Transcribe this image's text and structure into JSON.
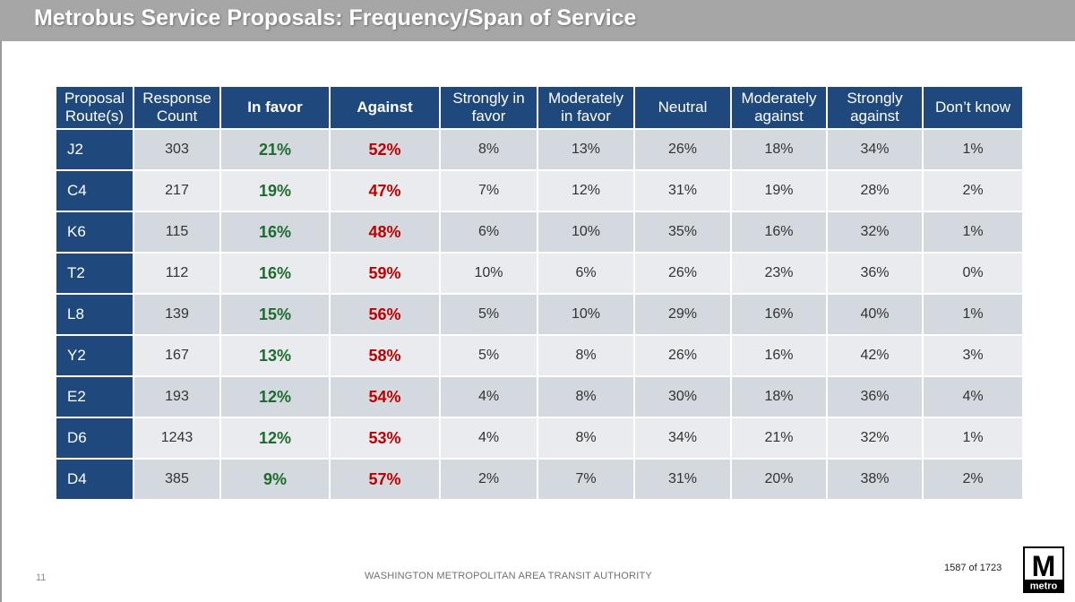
{
  "title": "Metrobus Service Proposals: Frequency/Span of Service",
  "table": {
    "headers": {
      "route": [
        "Proposal",
        "Route(s)"
      ],
      "count": [
        "Response",
        "Count"
      ],
      "in_favor": "In favor",
      "against": "Against",
      "strongly_favor": [
        "Strongly in",
        "favor"
      ],
      "moderately_favor": [
        "Moderately",
        "in favor"
      ],
      "neutral": "Neutral",
      "moderately_against": [
        "Moderately",
        "against"
      ],
      "strongly_against": [
        "Strongly",
        "against"
      ],
      "dont_know": "Don’t know"
    },
    "rows": [
      {
        "route": "J2",
        "count": "303",
        "in_favor": "21%",
        "against": "52%",
        "strongly_favor": "8%",
        "moderately_favor": "13%",
        "neutral": "26%",
        "moderately_against": "18%",
        "strongly_against": "34%",
        "dont_know": "1%"
      },
      {
        "route": "C4",
        "count": "217",
        "in_favor": "19%",
        "against": "47%",
        "strongly_favor": "7%",
        "moderately_favor": "12%",
        "neutral": "31%",
        "moderately_against": "19%",
        "strongly_against": "28%",
        "dont_know": "2%"
      },
      {
        "route": "K6",
        "count": "115",
        "in_favor": "16%",
        "against": "48%",
        "strongly_favor": "6%",
        "moderately_favor": "10%",
        "neutral": "35%",
        "moderately_against": "16%",
        "strongly_against": "32%",
        "dont_know": "1%"
      },
      {
        "route": "T2",
        "count": "112",
        "in_favor": "16%",
        "against": "59%",
        "strongly_favor": "10%",
        "moderately_favor": "6%",
        "neutral": "26%",
        "moderately_against": "23%",
        "strongly_against": "36%",
        "dont_know": "0%"
      },
      {
        "route": "L8",
        "count": "139",
        "in_favor": "15%",
        "against": "56%",
        "strongly_favor": "5%",
        "moderately_favor": "10%",
        "neutral": "29%",
        "moderately_against": "16%",
        "strongly_against": "40%",
        "dont_know": "1%"
      },
      {
        "route": "Y2",
        "count": "167",
        "in_favor": "13%",
        "against": "58%",
        "strongly_favor": "5%",
        "moderately_favor": "8%",
        "neutral": "26%",
        "moderately_against": "16%",
        "strongly_against": "42%",
        "dont_know": "3%"
      },
      {
        "route": "E2",
        "count": "193",
        "in_favor": "12%",
        "against": "54%",
        "strongly_favor": "4%",
        "moderately_favor": "8%",
        "neutral": "30%",
        "moderately_against": "18%",
        "strongly_against": "36%",
        "dont_know": "4%"
      },
      {
        "route": "D6",
        "count": "1243",
        "in_favor": "12%",
        "against": "53%",
        "strongly_favor": "4%",
        "moderately_favor": "8%",
        "neutral": "34%",
        "moderately_against": "21%",
        "strongly_against": "32%",
        "dont_know": "1%"
      },
      {
        "route": "D4",
        "count": "385",
        "in_favor": "9%",
        "against": "57%",
        "strongly_favor": "2%",
        "moderately_favor": "7%",
        "neutral": "31%",
        "moderately_against": "20%",
        "strongly_against": "38%",
        "dont_know": "2%"
      }
    ]
  },
  "footer": {
    "page_number": "11",
    "organization": "WASHINGTON METROPOLITAN AREA TRANSIT AUTHORITY",
    "page_count": "1587 of 1723",
    "logo_letter": "M",
    "logo_word": "metro"
  },
  "colors": {
    "header_bg": "#1f497d",
    "favor": "#1e6b2e",
    "against": "#c00000",
    "title_bar": "#a6a6a6"
  }
}
